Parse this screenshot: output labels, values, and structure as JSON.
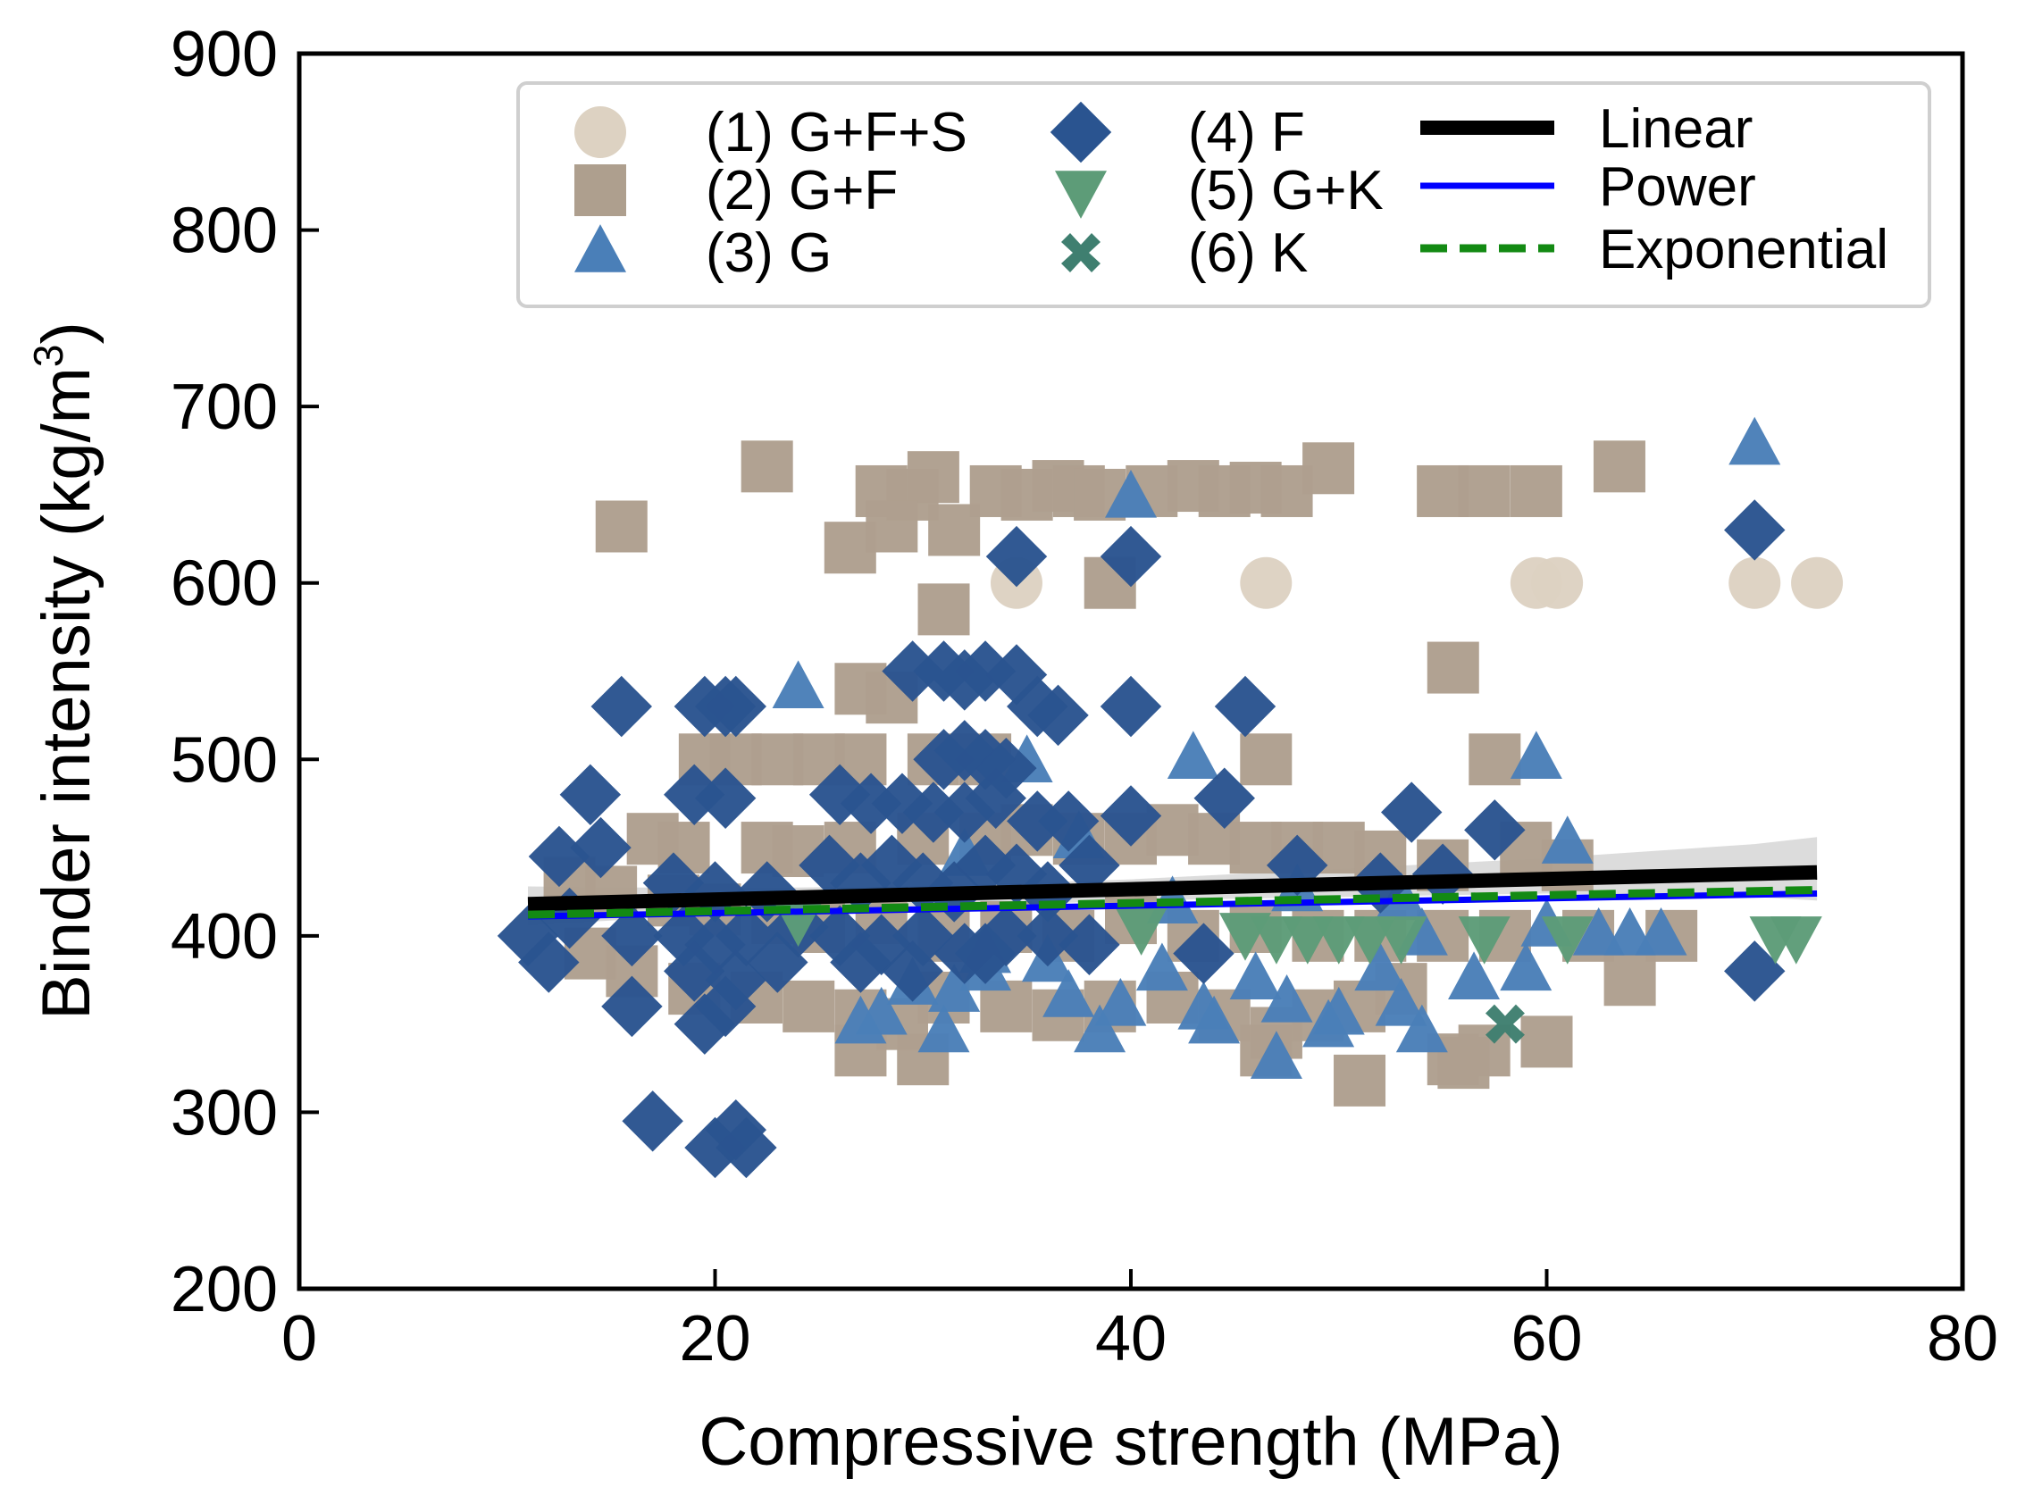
{
  "chart_data": {
    "type": "scatter",
    "title": "",
    "xlabel": "Compressive strength (MPa)",
    "ylabel_main": "Binder intensity (kg/m",
    "ylabel_sup": "3",
    "ylabel_close": ")",
    "xlim": [
      0,
      80
    ],
    "ylim": [
      200,
      900
    ],
    "xticks": [
      0,
      20,
      40,
      60,
      80
    ],
    "yticks": [
      200,
      300,
      400,
      500,
      600,
      700,
      800,
      900
    ],
    "grid": false,
    "legend_position": "top-right",
    "series": [
      {
        "name": "(1) G+F+S",
        "marker": "circle",
        "color": "#ddd2c2",
        "points": [
          [
            34.5,
            600
          ],
          [
            46.5,
            600
          ],
          [
            59.5,
            600
          ],
          [
            60.5,
            600
          ],
          [
            70,
            600
          ],
          [
            73,
            600
          ]
        ]
      },
      {
        "name": "(2) G+F",
        "marker": "square",
        "color": "#ae9f8e",
        "points": [
          [
            15.5,
            632
          ],
          [
            22.5,
            666
          ],
          [
            26.5,
            620
          ],
          [
            28,
            652
          ],
          [
            29.5,
            650
          ],
          [
            30.5,
            660
          ],
          [
            28.5,
            632
          ],
          [
            31.5,
            630
          ],
          [
            33.5,
            652
          ],
          [
            35,
            650
          ],
          [
            36.5,
            655
          ],
          [
            37.5,
            652
          ],
          [
            38.5,
            650
          ],
          [
            39,
            600
          ],
          [
            41,
            652
          ],
          [
            43,
            655
          ],
          [
            44.5,
            652
          ],
          [
            46,
            654
          ],
          [
            47.5,
            652
          ],
          [
            49.5,
            665
          ],
          [
            55,
            652
          ],
          [
            57,
            652
          ],
          [
            59.5,
            652
          ],
          [
            63.5,
            666
          ],
          [
            55.5,
            552
          ],
          [
            57.5,
            500
          ],
          [
            31,
            585
          ],
          [
            27,
            540
          ],
          [
            28.5,
            535
          ],
          [
            19.5,
            500
          ],
          [
            21,
            500
          ],
          [
            23,
            500
          ],
          [
            25,
            500
          ],
          [
            27,
            500
          ],
          [
            30.5,
            500
          ],
          [
            33,
            500
          ],
          [
            46.5,
            500
          ],
          [
            17,
            455
          ],
          [
            18.5,
            450
          ],
          [
            22.5,
            450
          ],
          [
            24,
            448
          ],
          [
            26.5,
            450
          ],
          [
            30,
            455
          ],
          [
            33,
            455
          ],
          [
            35,
            460
          ],
          [
            37.5,
            455
          ],
          [
            40,
            455
          ],
          [
            42,
            460
          ],
          [
            44,
            455
          ],
          [
            46,
            450
          ],
          [
            48,
            450
          ],
          [
            50,
            450
          ],
          [
            52,
            445
          ],
          [
            55,
            440
          ],
          [
            59,
            450
          ],
          [
            61,
            440
          ],
          [
            13,
            430
          ],
          [
            15,
            425
          ],
          [
            18,
            420
          ],
          [
            20,
            415
          ],
          [
            23,
            410
          ],
          [
            25,
            405
          ],
          [
            28,
            410
          ],
          [
            31,
            400
          ],
          [
            34,
            405
          ],
          [
            37,
            400
          ],
          [
            40,
            410
          ],
          [
            43,
            400
          ],
          [
            46,
            405
          ],
          [
            49,
            400
          ],
          [
            52,
            400
          ],
          [
            55,
            400
          ],
          [
            58,
            400
          ],
          [
            62,
            400
          ],
          [
            66,
            400
          ],
          [
            14,
            390
          ],
          [
            16,
            380
          ],
          [
            19,
            370
          ],
          [
            22,
            365
          ],
          [
            24.5,
            360
          ],
          [
            27,
            355
          ],
          [
            29,
            350
          ],
          [
            31,
            365
          ],
          [
            34,
            360
          ],
          [
            36.5,
            355
          ],
          [
            39,
            360
          ],
          [
            42,
            365
          ],
          [
            44.5,
            355
          ],
          [
            47,
            345
          ],
          [
            49,
            355
          ],
          [
            51,
            360
          ],
          [
            53,
            370
          ],
          [
            55.5,
            330
          ],
          [
            57,
            335
          ],
          [
            60,
            340
          ],
          [
            64,
            375
          ],
          [
            27,
            335
          ],
          [
            30,
            330
          ],
          [
            51,
            318
          ],
          [
            56,
            328
          ],
          [
            46.5,
            335
          ]
        ]
      },
      {
        "name": "(3) G",
        "marker": "triangle-up",
        "color": "#4a7fb8",
        "points": [
          [
            70,
            678
          ],
          [
            40,
            648
          ],
          [
            24,
            540
          ],
          [
            43,
            500
          ],
          [
            59.5,
            500
          ],
          [
            35,
            498
          ],
          [
            37.5,
            455
          ],
          [
            61,
            452
          ],
          [
            32,
            445
          ],
          [
            42,
            418
          ],
          [
            48,
            425
          ],
          [
            53,
            420
          ],
          [
            60,
            405
          ],
          [
            62.5,
            400
          ],
          [
            64,
            400
          ],
          [
            65.5,
            400
          ],
          [
            54,
            400
          ],
          [
            33,
            390
          ],
          [
            36,
            385
          ],
          [
            41.5,
            380
          ],
          [
            46,
            375
          ],
          [
            52,
            380
          ],
          [
            56.5,
            375
          ],
          [
            59,
            380
          ],
          [
            29.5,
            372
          ],
          [
            31.5,
            368
          ],
          [
            37,
            365
          ],
          [
            39.5,
            360
          ],
          [
            43.5,
            358
          ],
          [
            47.5,
            362
          ],
          [
            50,
            355
          ],
          [
            53,
            360
          ],
          [
            28,
            355
          ],
          [
            27,
            350
          ],
          [
            31,
            345
          ],
          [
            38.5,
            345
          ],
          [
            44,
            350
          ],
          [
            49.5,
            348
          ],
          [
            54,
            345
          ],
          [
            47,
            330
          ],
          [
            33,
            380
          ]
        ]
      },
      {
        "name": "(4) F",
        "marker": "diamond",
        "color": "#2a5490",
        "points": [
          [
            70,
            630
          ],
          [
            34.5,
            615
          ],
          [
            40,
            615
          ],
          [
            15.5,
            530
          ],
          [
            19.5,
            530
          ],
          [
            20.5,
            530
          ],
          [
            21,
            530
          ],
          [
            36.5,
            525
          ],
          [
            40,
            530
          ],
          [
            45.5,
            530
          ],
          [
            29.5,
            550
          ],
          [
            31,
            550
          ],
          [
            32,
            545
          ],
          [
            33,
            550
          ],
          [
            34.5,
            548
          ],
          [
            35.5,
            530
          ],
          [
            14,
            480
          ],
          [
            19,
            480
          ],
          [
            20.5,
            478
          ],
          [
            26,
            480
          ],
          [
            27.5,
            475
          ],
          [
            29,
            475
          ],
          [
            30.5,
            470
          ],
          [
            32,
            470
          ],
          [
            33.5,
            478
          ],
          [
            35.5,
            465
          ],
          [
            37,
            465
          ],
          [
            44.5,
            478
          ],
          [
            31,
            500
          ],
          [
            32,
            505
          ],
          [
            33,
            500
          ],
          [
            34,
            495
          ],
          [
            40,
            468
          ],
          [
            53.5,
            470
          ],
          [
            57.5,
            460
          ],
          [
            12.5,
            445
          ],
          [
            14.5,
            450
          ],
          [
            18,
            430
          ],
          [
            20,
            425
          ],
          [
            22.5,
            425
          ],
          [
            25.5,
            440
          ],
          [
            27,
            430
          ],
          [
            28.5,
            440
          ],
          [
            30,
            430
          ],
          [
            31.5,
            425
          ],
          [
            33,
            440
          ],
          [
            34.5,
            435
          ],
          [
            36,
            425
          ],
          [
            38,
            440
          ],
          [
            48,
            440
          ],
          [
            52,
            430
          ],
          [
            55,
            435
          ],
          [
            11,
            400
          ],
          [
            13,
            410
          ],
          [
            16,
            400
          ],
          [
            18.5,
            400
          ],
          [
            20,
            395
          ],
          [
            21.5,
            400
          ],
          [
            24,
            405
          ],
          [
            26,
            400
          ],
          [
            28,
            395
          ],
          [
            30,
            400
          ],
          [
            32,
            390
          ],
          [
            34,
            400
          ],
          [
            36,
            400
          ],
          [
            38,
            395
          ],
          [
            43.5,
            390
          ],
          [
            70,
            380
          ],
          [
            12,
            385
          ],
          [
            19,
            380
          ],
          [
            21,
            375
          ],
          [
            23,
            385
          ],
          [
            27,
            385
          ],
          [
            29.5,
            380
          ],
          [
            33,
            390
          ],
          [
            16,
            360
          ],
          [
            20.5,
            360
          ],
          [
            19.5,
            350
          ],
          [
            17,
            295
          ],
          [
            20,
            280
          ],
          [
            21,
            290
          ],
          [
            21.5,
            280
          ]
        ]
      },
      {
        "name": "(5) G+K",
        "marker": "triangle-down",
        "color": "#5d9c78",
        "points": [
          [
            24,
            410
          ],
          [
            40.5,
            405
          ],
          [
            45.5,
            402
          ],
          [
            47,
            400
          ],
          [
            48.5,
            400
          ],
          [
            50,
            400
          ],
          [
            51.5,
            400
          ],
          [
            53,
            400
          ],
          [
            57,
            400
          ],
          [
            61,
            400
          ],
          [
            71,
            400
          ],
          [
            72,
            400
          ]
        ]
      },
      {
        "name": "(6) K",
        "marker": "x",
        "color": "#3f7f70",
        "points": [
          [
            58,
            350
          ]
        ]
      }
    ],
    "fits": [
      {
        "name": "Linear",
        "style": "solid-thick",
        "color": "#000000",
        "x": [
          11,
          73
        ],
        "y": [
          418,
          436
        ]
      },
      {
        "name": "Power",
        "style": "solid-thin",
        "color": "#0000ff",
        "x": [
          11,
          73
        ],
        "y": [
          411,
          424
        ]
      },
      {
        "name": "Exponential",
        "style": "dashed",
        "color": "#138a13",
        "x": [
          11,
          73
        ],
        "y": [
          412,
          426
        ]
      }
    ],
    "confidence_band": {
      "x": [
        11,
        20,
        30,
        40,
        50,
        60,
        70,
        73
      ],
      "upper": [
        428,
        427,
        428,
        432,
        438,
        444,
        452,
        456
      ],
      "lower": [
        406,
        412,
        416,
        420,
        422,
        424,
        422,
        420
      ]
    }
  }
}
